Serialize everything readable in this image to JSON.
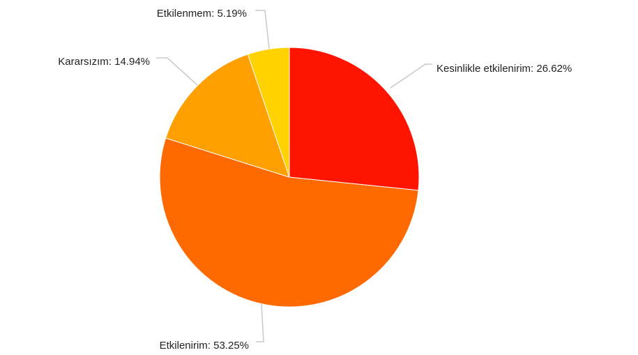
{
  "chart_data": {
    "type": "pie",
    "start_angle": "12 o'clock",
    "direction": "clockwise",
    "slices": [
      {
        "label": "Kesinlikle etkilenirim: 26.62%",
        "name": "Kesinlikle etkilenirim",
        "value": 26.62,
        "color": "#ff1400"
      },
      {
        "label": "Etkilenirim: 53.25%",
        "name": "Etkilenirim",
        "value": 53.25,
        "color": "#ff6a00"
      },
      {
        "label": "Kararsızım: 14.94%",
        "name": "Kararsızım",
        "value": 14.94,
        "color": "#ffa000"
      },
      {
        "label": "Etkilenmem: 5.19%",
        "name": "Etkilenmem",
        "value": 5.19,
        "color": "#ffd200"
      }
    ]
  }
}
